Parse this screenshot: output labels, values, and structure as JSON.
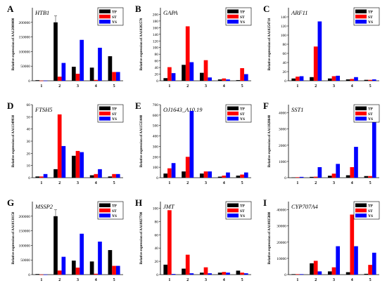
{
  "figure": {
    "series_names": [
      "TP",
      "ST",
      "YS"
    ],
    "colors": {
      "TP": "#000000",
      "ST": "#ff0000",
      "YS": "#0000ff"
    },
    "categories": [
      "1",
      "2",
      "3",
      "4",
      "5"
    ]
  },
  "chart_data": [
    {
      "panel": "A",
      "gene": "HTB1",
      "type": "bar",
      "ylabel": "Relative expression of AA12008400",
      "ylim": [
        0,
        250000
      ],
      "yticks": [
        "0",
        "50000",
        "100000",
        "150000",
        "200000"
      ],
      "ytick_values": [
        0,
        50000,
        100000,
        150000,
        200000
      ],
      "categories": [
        "1",
        "2",
        "3",
        "4",
        "5"
      ],
      "series": [
        {
          "name": "TP",
          "values": [
            2000,
            200000,
            48000,
            45000,
            84000
          ],
          "errors": [
            0,
            22000,
            0,
            0,
            0
          ]
        },
        {
          "name": "ST",
          "values": [
            500,
            14000,
            24000,
            3000,
            30000
          ]
        },
        {
          "name": "YS",
          "values": [
            500,
            61000,
            140000,
            113000,
            30000
          ]
        }
      ]
    },
    {
      "panel": "B",
      "gene": "GAPA",
      "type": "bar",
      "ylabel": "Relative expression of AA10202570",
      "ylim": [
        0,
        220
      ],
      "yticks": [
        "0",
        "20",
        "40",
        "60",
        "80",
        "100",
        "120",
        "140",
        "160",
        "180",
        "200"
      ],
      "ytick_values": [
        0,
        20,
        40,
        60,
        80,
        100,
        120,
        140,
        160,
        180,
        200
      ],
      "categories": [
        "1",
        "2",
        "3",
        "4",
        "5"
      ],
      "series": [
        {
          "name": "TP",
          "values": [
            8,
            48,
            24,
            4,
            2
          ]
        },
        {
          "name": "ST",
          "values": [
            41,
            164,
            62,
            7,
            38
          ]
        },
        {
          "name": "YS",
          "values": [
            23,
            56,
            10,
            4,
            20
          ]
        }
      ]
    },
    {
      "panel": "C",
      "gene": "ARF11",
      "type": "bar",
      "ylabel": "Relative expression of AA10254710",
      "ylim": [
        0,
        160
      ],
      "yticks": [
        "0",
        "20",
        "40",
        "60",
        "80",
        "100",
        "120",
        "140"
      ],
      "ytick_values": [
        0,
        20,
        40,
        60,
        80,
        100,
        120,
        140
      ],
      "categories": [
        "1",
        "2",
        "3",
        "4",
        "5"
      ],
      "series": [
        {
          "name": "TP",
          "values": [
            5,
            8,
            5,
            3,
            2
          ]
        },
        {
          "name": "ST",
          "values": [
            9,
            75,
            10,
            4,
            2
          ]
        },
        {
          "name": "YS",
          "values": [
            10,
            130,
            11,
            8,
            3
          ]
        }
      ]
    },
    {
      "panel": "D",
      "gene": "FTSH5",
      "type": "bar",
      "ylabel": "Relative expression of AA11349930",
      "ylim": [
        0,
        60
      ],
      "yticks": [
        "0",
        "10",
        "20",
        "30",
        "40",
        "50",
        "60"
      ],
      "ytick_values": [
        0,
        10,
        20,
        30,
        40,
        50,
        60
      ],
      "categories": [
        "1",
        "2",
        "3",
        "4",
        "5"
      ],
      "series": [
        {
          "name": "TP",
          "values": [
            1,
            7,
            18,
            2,
            1
          ]
        },
        {
          "name": "ST",
          "values": [
            1,
            52,
            22,
            3,
            3
          ]
        },
        {
          "name": "YS",
          "values": [
            3,
            26,
            21,
            7,
            3
          ]
        }
      ]
    },
    {
      "panel": "E",
      "gene": "OJ1643_A10.19",
      "type": "bar",
      "ylabel": "Relative expression of AA11533440",
      "ylim": [
        0,
        700
      ],
      "yticks": [
        "0",
        "100",
        "200",
        "300",
        "400",
        "500",
        "600",
        "700"
      ],
      "ytick_values": [
        0,
        100,
        200,
        300,
        400,
        500,
        600,
        700
      ],
      "categories": [
        "1",
        "2",
        "3",
        "4",
        "5"
      ],
      "series": [
        {
          "name": "TP",
          "values": [
            40,
            60,
            40,
            10,
            20
          ]
        },
        {
          "name": "ST",
          "values": [
            90,
            200,
            60,
            20,
            30
          ]
        },
        {
          "name": "YS",
          "values": [
            140,
            640,
            60,
            50,
            50
          ]
        }
      ]
    },
    {
      "panel": "F",
      "gene": "SST1",
      "type": "bar",
      "ylabel": "Relative expression of AA11828640",
      "ylim": [
        0,
        4500
      ],
      "yticks": [
        "0",
        "1000",
        "2000",
        "3000",
        "4000"
      ],
      "ytick_values": [
        0,
        1000,
        2000,
        3000,
        4000
      ],
      "categories": [
        "1",
        "2",
        "3",
        "4",
        "5"
      ],
      "series": [
        {
          "name": "TP",
          "values": [
            20,
            50,
            120,
            150,
            100
          ]
        },
        {
          "name": "ST",
          "values": [
            30,
            60,
            250,
            650,
            100
          ]
        },
        {
          "name": "YS",
          "values": [
            50,
            650,
            850,
            1900,
            3900
          ]
        }
      ]
    },
    {
      "panel": "G",
      "gene": "MSSP2",
      "type": "bar",
      "ylabel": "Relative expression of AA10130150",
      "ylim": [
        0,
        250000
      ],
      "yticks": [
        "0",
        "50000",
        "100000",
        "150000",
        "200000"
      ],
      "ytick_values": [
        0,
        50000,
        100000,
        150000,
        200000
      ],
      "categories": [
        "1",
        "2",
        "3",
        "4",
        "5"
      ],
      "series": [
        {
          "name": "TP",
          "values": [
            2000,
            200000,
            48000,
            45000,
            84000
          ],
          "errors": [
            0,
            22000,
            0,
            0,
            0
          ]
        },
        {
          "name": "ST",
          "values": [
            500,
            14000,
            24000,
            3000,
            30000
          ]
        },
        {
          "name": "YS",
          "values": [
            500,
            61000,
            140000,
            113000,
            30000
          ]
        }
      ]
    },
    {
      "panel": "H",
      "gene": "JMT",
      "type": "bar",
      "ylabel": "Relative expression of AA10827700",
      "ylim": [
        0,
        110
      ],
      "yticks": [
        "0",
        "20",
        "40",
        "60",
        "80",
        "100"
      ],
      "ytick_values": [
        0,
        20,
        40,
        60,
        80,
        100
      ],
      "categories": [
        "1",
        "2",
        "3",
        "4",
        "5"
      ],
      "series": [
        {
          "name": "TP",
          "values": [
            15,
            9,
            3,
            3,
            6
          ]
        },
        {
          "name": "ST",
          "values": [
            97,
            30,
            11,
            4,
            3
          ]
        },
        {
          "name": "YS",
          "values": [
            1,
            2,
            2,
            3,
            2
          ]
        }
      ]
    },
    {
      "panel": "I",
      "gene": "CYP707A4",
      "type": "bar",
      "ylabel": "Relative expression of AA10835880",
      "ylim": [
        0,
        45000
      ],
      "yticks": [
        "0",
        "10000",
        "20000",
        "30000",
        "40000"
      ],
      "ytick_values": [
        0,
        10000,
        20000,
        30000,
        40000
      ],
      "categories": [
        "1",
        "2",
        "3",
        "4",
        "5"
      ],
      "series": [
        {
          "name": "TP",
          "values": [
            300,
            7000,
            2000,
            1500,
            500
          ]
        },
        {
          "name": "ST",
          "values": [
            300,
            8500,
            4500,
            37000,
            6000
          ]
        },
        {
          "name": "YS",
          "values": [
            300,
            2000,
            17500,
            17500,
            13500
          ]
        }
      ]
    }
  ]
}
